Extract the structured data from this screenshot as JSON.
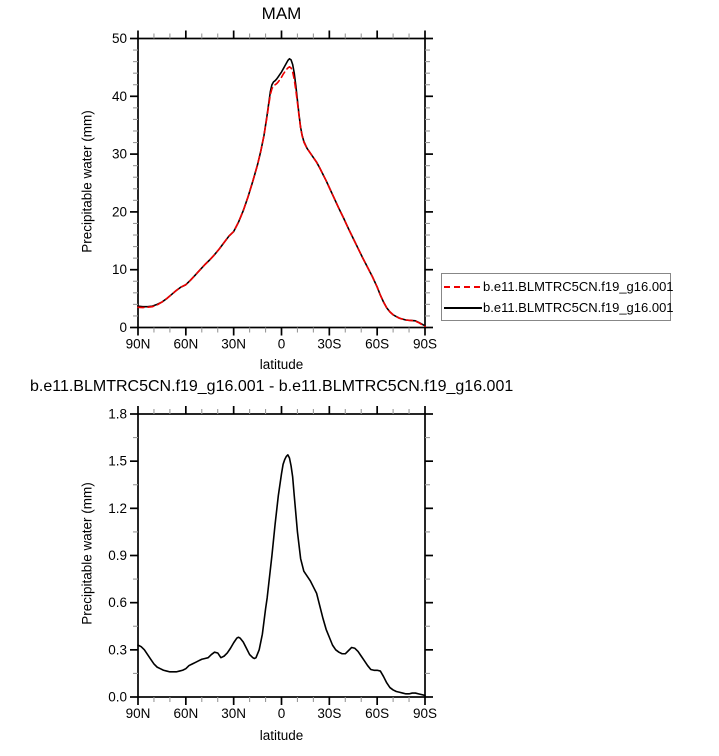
{
  "figure": {
    "background": "#ffffff",
    "curve_black": "#000000",
    "curve_red": "#ee0000",
    "minor_tick_color": "#999999",
    "legend_border_color": "#878787"
  },
  "chart_data": [
    {
      "type": "line",
      "title": "MAM",
      "xlabel": "latitude",
      "ylabel": "Precipitable water (mm)",
      "ylim": [
        0,
        50
      ],
      "xlim_degrees_north": [
        90,
        -90
      ],
      "xtick_labels": [
        "90N",
        "60N",
        "30N",
        "0",
        "30S",
        "60S",
        "90S"
      ],
      "xtick_values": [
        90,
        60,
        30,
        0,
        -30,
        -60,
        -90
      ],
      "ytick_labels": [
        "0",
        "10",
        "20",
        "30",
        "40",
        "50"
      ],
      "ytick_values": [
        0,
        10,
        20,
        30,
        40,
        50
      ],
      "minor_x_step": 10,
      "minor_y_step": 2,
      "grid": false,
      "legend": {
        "position": "outside-right-bottom",
        "order": [
          "dashed-red",
          "solid-black"
        ]
      },
      "series": [
        {
          "name": "b.e11.BLMTRC5CN.f19_g16.001",
          "color": "#ee0000",
          "style": "dashed",
          "dash": "6,4",
          "x": [
            90,
            87,
            84,
            81,
            78,
            75,
            72,
            69,
            66,
            63,
            60,
            57,
            54,
            51,
            48,
            45,
            42,
            39,
            36,
            33,
            30,
            27,
            24,
            21,
            18,
            15,
            13,
            11,
            9,
            8,
            7,
            6,
            5,
            4,
            3,
            2,
            1,
            0,
            -1,
            -2,
            -3,
            -4,
            -5,
            -6,
            -7,
            -8,
            -9,
            -10,
            -11,
            -12,
            -13,
            -14,
            -16,
            -18,
            -20,
            -22,
            -24,
            -26,
            -28,
            -30,
            -33,
            -36,
            -39,
            -42,
            -45,
            -48,
            -51,
            -54,
            -57,
            -60,
            -62,
            -64,
            -66,
            -68,
            -70,
            -72,
            -74,
            -76,
            -78,
            -80,
            -82,
            -84,
            -86,
            -88,
            -90
          ],
          "y": [
            3.5,
            3.45,
            3.5,
            3.6,
            3.9,
            4.4,
            5.0,
            5.7,
            6.4,
            7.0,
            7.4,
            8.2,
            9.1,
            10.0,
            10.9,
            11.7,
            12.6,
            13.6,
            14.7,
            15.8,
            16.6,
            18.2,
            20.2,
            22.6,
            25.3,
            28.2,
            30.5,
            33.2,
            36.6,
            38.5,
            40.3,
            41.3,
            41.8,
            42.0,
            42.2,
            42.5,
            42.9,
            43.3,
            43.8,
            44.2,
            44.6,
            44.9,
            45.1,
            44.9,
            44.2,
            42.9,
            41.0,
            38.9,
            36.6,
            34.5,
            33.1,
            32.1,
            31.0,
            30.2,
            29.4,
            28.6,
            27.6,
            26.5,
            25.4,
            24.2,
            22.4,
            20.6,
            18.9,
            17.1,
            15.4,
            13.7,
            12.0,
            10.4,
            8.8,
            7.0,
            5.6,
            4.4,
            3.4,
            2.7,
            2.2,
            1.9,
            1.6,
            1.45,
            1.3,
            1.25,
            1.2,
            1.1,
            0.85,
            0.5,
            0.2
          ]
        },
        {
          "name": "b.e11.BLMTRC5CN.f19_g16.001",
          "color": "#000000",
          "style": "solid",
          "dash": "none",
          "x": [
            90,
            87,
            84,
            81,
            78,
            75,
            72,
            69,
            66,
            63,
            60,
            57,
            54,
            51,
            48,
            45,
            42,
            39,
            36,
            33,
            30,
            27,
            24,
            21,
            18,
            15,
            13,
            11,
            9,
            8,
            7,
            6,
            5,
            4,
            3,
            2,
            1,
            0,
            -1,
            -2,
            -3,
            -4,
            -5,
            -6,
            -7,
            -8,
            -9,
            -10,
            -11,
            -12,
            -13,
            -14,
            -16,
            -18,
            -20,
            -22,
            -24,
            -26,
            -28,
            -30,
            -33,
            -36,
            -39,
            -42,
            -45,
            -48,
            -51,
            -54,
            -57,
            -60,
            -62,
            -64,
            -66,
            -68,
            -70,
            -72,
            -74,
            -76,
            -78,
            -80,
            -82,
            -84,
            -86,
            -88,
            -90
          ],
          "y": [
            3.7,
            3.6,
            3.6,
            3.7,
            4.0,
            4.4,
            5.0,
            5.7,
            6.4,
            7.0,
            7.4,
            8.2,
            9.1,
            10.0,
            10.9,
            11.7,
            12.6,
            13.6,
            14.7,
            15.8,
            16.6,
            18.2,
            20.2,
            22.6,
            25.3,
            28.2,
            30.5,
            33.2,
            36.8,
            38.8,
            40.8,
            42.0,
            42.5,
            42.7,
            43.0,
            43.4,
            43.8,
            44.2,
            44.7,
            45.2,
            45.7,
            46.2,
            46.5,
            46.3,
            45.5,
            44.0,
            41.8,
            39.3,
            36.8,
            34.6,
            33.2,
            32.2,
            31.0,
            30.2,
            29.4,
            28.6,
            27.6,
            26.5,
            25.4,
            24.2,
            22.4,
            20.6,
            18.9,
            17.1,
            15.4,
            13.7,
            12.0,
            10.4,
            8.8,
            7.0,
            5.6,
            4.4,
            3.4,
            2.7,
            2.2,
            1.9,
            1.6,
            1.45,
            1.3,
            1.25,
            1.2,
            1.15,
            0.9,
            0.6,
            0.3
          ]
        }
      ]
    },
    {
      "type": "line",
      "title": "b.e11.BLMTRC5CN.f19_g16.001 - b.e11.BLMTRC5CN.f19_g16.001",
      "xlabel": "latitude",
      "ylabel": "Precipitable water (mm)",
      "ylim": [
        0,
        1.8
      ],
      "xlim_degrees_north": [
        90,
        -90
      ],
      "xtick_labels": [
        "90N",
        "60N",
        "30N",
        "0",
        "30S",
        "60S",
        "90S"
      ],
      "xtick_values": [
        90,
        60,
        30,
        0,
        -30,
        -60,
        -90
      ],
      "ytick_labels": [
        "0.0",
        "0.3",
        "0.6",
        "0.9",
        "1.2",
        "1.5",
        "1.8"
      ],
      "ytick_values": [
        0,
        0.3,
        0.6,
        0.9,
        1.2,
        1.5,
        1.8
      ],
      "minor_x_step": 10,
      "minor_y_step": 0.15,
      "grid": false,
      "series": [
        {
          "color": "#000000",
          "style": "solid",
          "dash": "none",
          "x": [
            90,
            88,
            86,
            84,
            82,
            80,
            78,
            76,
            74,
            72,
            70,
            68,
            66,
            64,
            62,
            60,
            58,
            56,
            54,
            52,
            50,
            48,
            46,
            44,
            42,
            40,
            38,
            36,
            34,
            32,
            30,
            28,
            27,
            26,
            24,
            22,
            20,
            18,
            17,
            16,
            14,
            12,
            10,
            9,
            8,
            6,
            4,
            2,
            0,
            -1,
            -2,
            -3,
            -4,
            -5,
            -6,
            -7,
            -8,
            -10,
            -12,
            -14,
            -16,
            -18,
            -20,
            -22,
            -24,
            -26,
            -28,
            -30,
            -32,
            -34,
            -36,
            -38,
            -40,
            -42,
            -44,
            -46,
            -48,
            -50,
            -52,
            -54,
            -56,
            -58,
            -60,
            -62,
            -64,
            -66,
            -68,
            -70,
            -72,
            -74,
            -76,
            -78,
            -80,
            -82,
            -84,
            -86,
            -88,
            -90
          ],
          "y": [
            0.33,
            0.32,
            0.3,
            0.27,
            0.24,
            0.21,
            0.19,
            0.18,
            0.17,
            0.165,
            0.16,
            0.16,
            0.16,
            0.165,
            0.17,
            0.18,
            0.2,
            0.21,
            0.22,
            0.23,
            0.24,
            0.245,
            0.25,
            0.27,
            0.285,
            0.28,
            0.25,
            0.26,
            0.28,
            0.31,
            0.345,
            0.375,
            0.38,
            0.375,
            0.35,
            0.31,
            0.27,
            0.25,
            0.245,
            0.25,
            0.3,
            0.4,
            0.56,
            0.63,
            0.72,
            0.9,
            1.1,
            1.28,
            1.42,
            1.48,
            1.51,
            1.53,
            1.54,
            1.52,
            1.47,
            1.4,
            1.28,
            1.05,
            0.88,
            0.8,
            0.77,
            0.74,
            0.7,
            0.66,
            0.58,
            0.5,
            0.43,
            0.38,
            0.33,
            0.3,
            0.285,
            0.275,
            0.275,
            0.295,
            0.315,
            0.31,
            0.29,
            0.26,
            0.23,
            0.2,
            0.175,
            0.17,
            0.17,
            0.165,
            0.13,
            0.09,
            0.06,
            0.045,
            0.035,
            0.03,
            0.025,
            0.02,
            0.02,
            0.025,
            0.025,
            0.02,
            0.015,
            0.01
          ]
        }
      ]
    }
  ]
}
